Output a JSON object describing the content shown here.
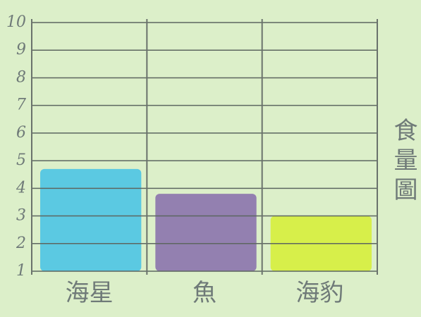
{
  "chart_data": {
    "type": "bar",
    "title": "食量圖",
    "categories": [
      "海星",
      "魚",
      "海豹"
    ],
    "values": [
      4.7,
      3.8,
      3.0
    ],
    "colors": [
      "#4cc4e4",
      "#8b73ad",
      "#d6ee3c"
    ],
    "ylim": [
      1,
      10
    ],
    "yticks": [
      1,
      2,
      3,
      4,
      5,
      6,
      7,
      8,
      9,
      10
    ],
    "grid": true
  }
}
